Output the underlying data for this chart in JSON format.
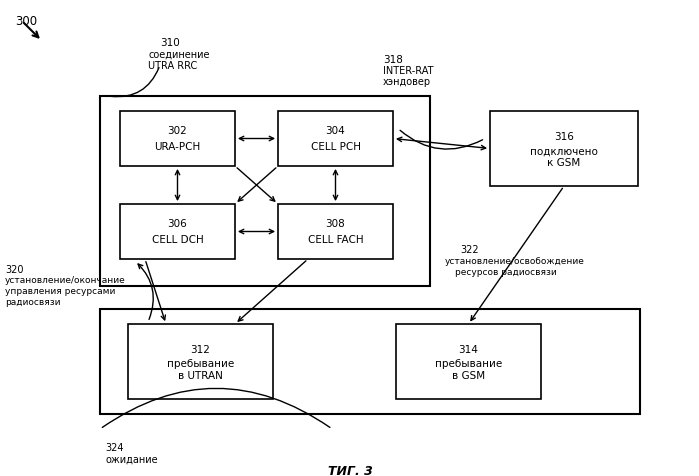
{
  "bg_color": "#ffffff",
  "title": "ΤИГ. 3",
  "label_300": "300",
  "label_310_num": "310",
  "label_310_a": "соединение",
  "label_310_b": "UTRA RRC",
  "label_318_num": "318",
  "label_318_a": "INTER-RAT",
  "label_318_b": "хэндовер",
  "label_316_num": "316",
  "label_316_a": "подключено",
  "label_316_b": "к GSM",
  "label_302_num": "302",
  "label_302_a": "URA-PCH",
  "label_304_num": "304",
  "label_304_a": "CELL PCH",
  "label_306_num": "306",
  "label_306_a": "CELL DCH",
  "label_308_num": "308",
  "label_308_a": "CELL FACH",
  "label_312_num": "312",
  "label_312_a": "пребывание",
  "label_312_b": "в UTRAN",
  "label_314_num": "314",
  "label_314_a": "пребывание",
  "label_314_b": "в GSM",
  "label_320_num": "320",
  "label_320_a": "установление/окончание",
  "label_320_b": "управления ресурсами",
  "label_320_c": "радиосвязи",
  "label_322_num": "322",
  "label_322_a": "установление/освобождение",
  "label_322_b": "ресурсов радиосвязи",
  "label_324_num": "324",
  "label_324_a": "ожидание"
}
